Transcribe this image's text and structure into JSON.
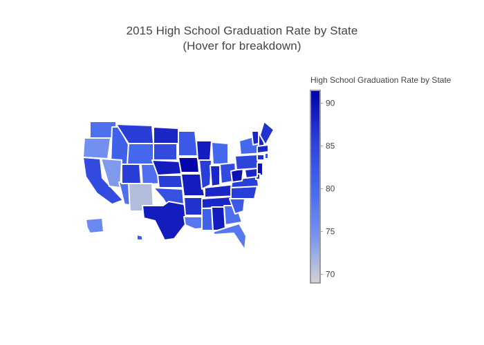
{
  "chart_data": {
    "type": "choropleth",
    "title": "2015 High School Graduation Rate by State",
    "subtitle": "(Hover for breakdown)",
    "colorbar": {
      "title": "High School Graduation Rate by State",
      "min": 69,
      "max": 91.5,
      "ticks": [
        90,
        85,
        80,
        75,
        70
      ],
      "colorscale": [
        "#d3d3d3",
        "#7593f0",
        "#4466ee",
        "#2a3ed8",
        "#0000a8"
      ]
    },
    "states": [
      {
        "code": "WA",
        "value": 79
      },
      {
        "code": "OR",
        "value": 75
      },
      {
        "code": "CA",
        "value": 84
      },
      {
        "code": "ID",
        "value": 81
      },
      {
        "code": "NV",
        "value": 74
      },
      {
        "code": "AZ",
        "value": 79
      },
      {
        "code": "MT",
        "value": 86
      },
      {
        "code": "WY",
        "value": 80
      },
      {
        "code": "UT",
        "value": 86
      },
      {
        "code": "CO",
        "value": 79
      },
      {
        "code": "NM",
        "value": 71
      },
      {
        "code": "ND",
        "value": 88
      },
      {
        "code": "SD",
        "value": 84
      },
      {
        "code": "NE",
        "value": 89
      },
      {
        "code": "KS",
        "value": 86
      },
      {
        "code": "OK",
        "value": 83
      },
      {
        "code": "TX",
        "value": 89
      },
      {
        "code": "MN",
        "value": 82
      },
      {
        "code": "IA",
        "value": 91
      },
      {
        "code": "MO",
        "value": 89
      },
      {
        "code": "AR",
        "value": 87
      },
      {
        "code": "LA",
        "value": 78
      },
      {
        "code": "WI",
        "value": 89
      },
      {
        "code": "IL",
        "value": 86
      },
      {
        "code": "MI",
        "value": 80
      },
      {
        "code": "IN",
        "value": 88
      },
      {
        "code": "OH",
        "value": 84
      },
      {
        "code": "KY",
        "value": 88
      },
      {
        "code": "TN",
        "value": 88
      },
      {
        "code": "MS",
        "value": 81
      },
      {
        "code": "AL",
        "value": 89
      },
      {
        "code": "GA",
        "value": 79
      },
      {
        "code": "FL",
        "value": 78
      },
      {
        "code": "SC",
        "value": 82
      },
      {
        "code": "NC",
        "value": 86
      },
      {
        "code": "VA",
        "value": 86
      },
      {
        "code": "WV",
        "value": 90
      },
      {
        "code": "PA",
        "value": 85
      },
      {
        "code": "NY",
        "value": 80
      },
      {
        "code": "VT",
        "value": 88
      },
      {
        "code": "NH",
        "value": 88
      },
      {
        "code": "ME",
        "value": 87
      },
      {
        "code": "MA",
        "value": 88
      },
      {
        "code": "CT",
        "value": 87
      },
      {
        "code": "RI",
        "value": 83
      },
      {
        "code": "NJ",
        "value": 90
      },
      {
        "code": "DE",
        "value": 86
      },
      {
        "code": "MD",
        "value": 88
      },
      {
        "code": "AK",
        "value": 76
      },
      {
        "code": "HI",
        "value": 82
      }
    ]
  }
}
